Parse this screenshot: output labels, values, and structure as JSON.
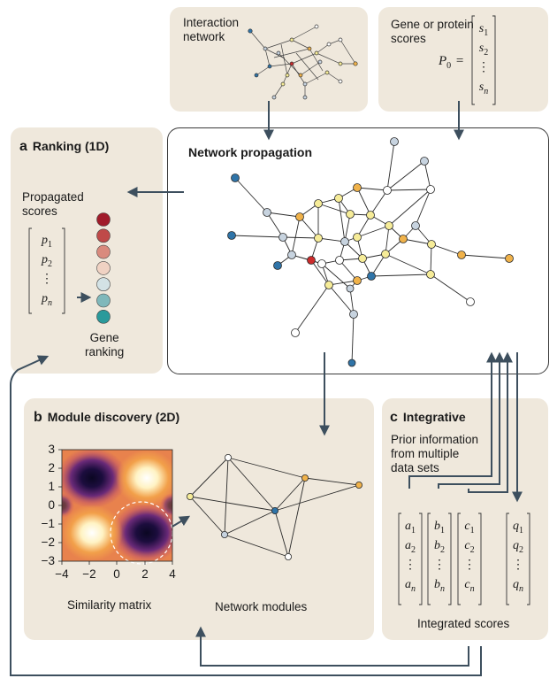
{
  "interaction_network_label": "Interaction\nnetwork",
  "scores_box": {
    "label": "Gene or protein\nscores",
    "p0": "P",
    "p0_sub": "0",
    "equals": "=",
    "vector": [
      "s1",
      "s2",
      "⋮",
      "sn"
    ]
  },
  "propagation": {
    "title": "Network propagation"
  },
  "ranking": {
    "letter": "a",
    "title": "Ranking (1D)",
    "propagated_label": "Propagated\nscores",
    "vector": [
      "p1",
      "p2",
      "⋮",
      "pn"
    ],
    "gene_ranking_label": "Gene\nranking",
    "rank_colors": [
      "#a01b2a",
      "#bf4a49",
      "#d98a7d",
      "#f0d2c3",
      "#d3e2e5",
      "#7fb8bb",
      "#2a9a9b"
    ]
  },
  "module": {
    "letter": "b",
    "title": "Module discovery (2D)",
    "similarity_label": "Similarity matrix",
    "modules_label": "Network modules",
    "x_ticks": [
      "−4",
      "−2",
      "0",
      "2",
      "4"
    ],
    "y_ticks": [
      "3",
      "2",
      "1",
      "0",
      "−1",
      "−2",
      "−3"
    ]
  },
  "integrative": {
    "letter": "c",
    "title": "Integrative",
    "prior_label": "Prior information\nfrom multiple\ndata sets",
    "vectors": [
      [
        "a1",
        "a2",
        "⋮",
        "an"
      ],
      [
        "b1",
        "b2",
        "⋮",
        "bn"
      ],
      [
        "c1",
        "c2",
        "⋮",
        "cn"
      ],
      [
        "q1",
        "q2",
        "⋮",
        "qn"
      ]
    ],
    "integrated_label": "Integrated scores"
  },
  "colors": {
    "panel": "#efe8dc",
    "arrow": "#3d4f5e",
    "node_red": "#cc2b2b",
    "node_yellow": "#f6ec98",
    "node_orange": "#f0b24a",
    "node_grey": "#c7d3df",
    "node_blue": "#2f74a8",
    "node_white": "#ffffff"
  }
}
